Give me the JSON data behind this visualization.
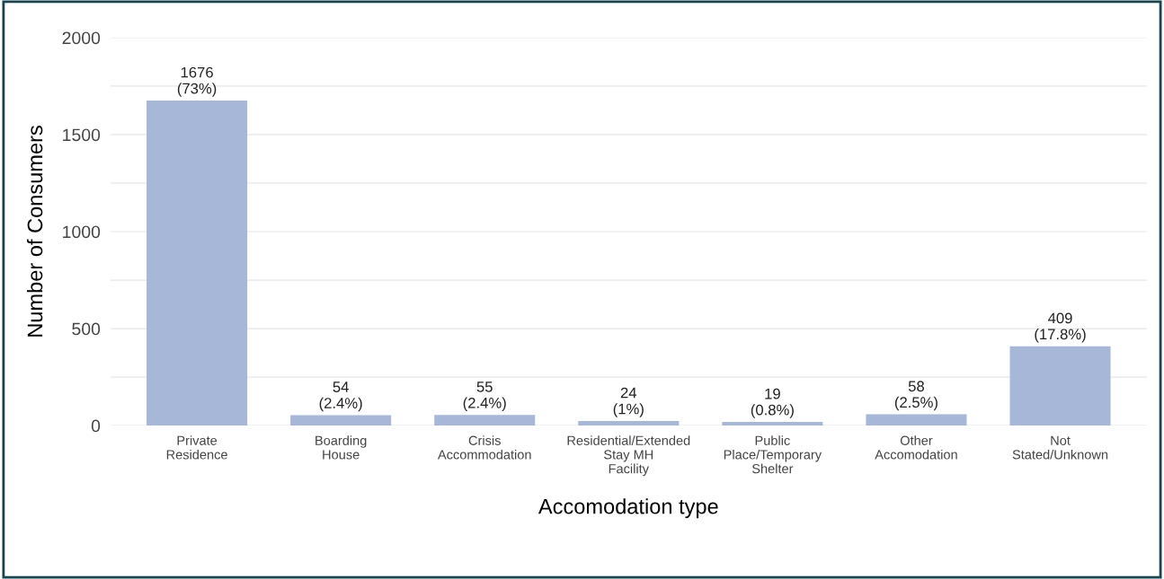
{
  "chart_data": {
    "type": "bar",
    "xlabel": "Accomodation type",
    "ylabel": "Number of Consumers",
    "categories": [
      "Private\nResidence",
      "Boarding\nHouse",
      "Crisis\nAccommodation",
      "Residential/Extended\nStay MH\nFacility",
      "Public\nPlace/Temporary\nShelter",
      "Other\nAccomodation",
      "Not\nStated/Unknown"
    ],
    "values": [
      1676,
      54,
      55,
      24,
      19,
      58,
      409
    ],
    "value_labels": [
      "1676\n(73%)",
      "54\n(2.4%)",
      "55\n(2.4%)",
      "24\n(1%)",
      "19\n(0.8%)",
      "58\n(2.5%)",
      "409\n(17.8%)"
    ],
    "color": "#a7b7d8",
    "ylim": [
      0,
      2000
    ],
    "yticks": [
      0,
      {
        "value": 250,
        "label": null
      },
      500,
      {
        "value": 750,
        "label": null
      },
      1000,
      {
        "value": 1250,
        "label": null
      },
      1500,
      {
        "value": 1750,
        "label": null
      },
      2000
    ],
    "grid": "y"
  }
}
